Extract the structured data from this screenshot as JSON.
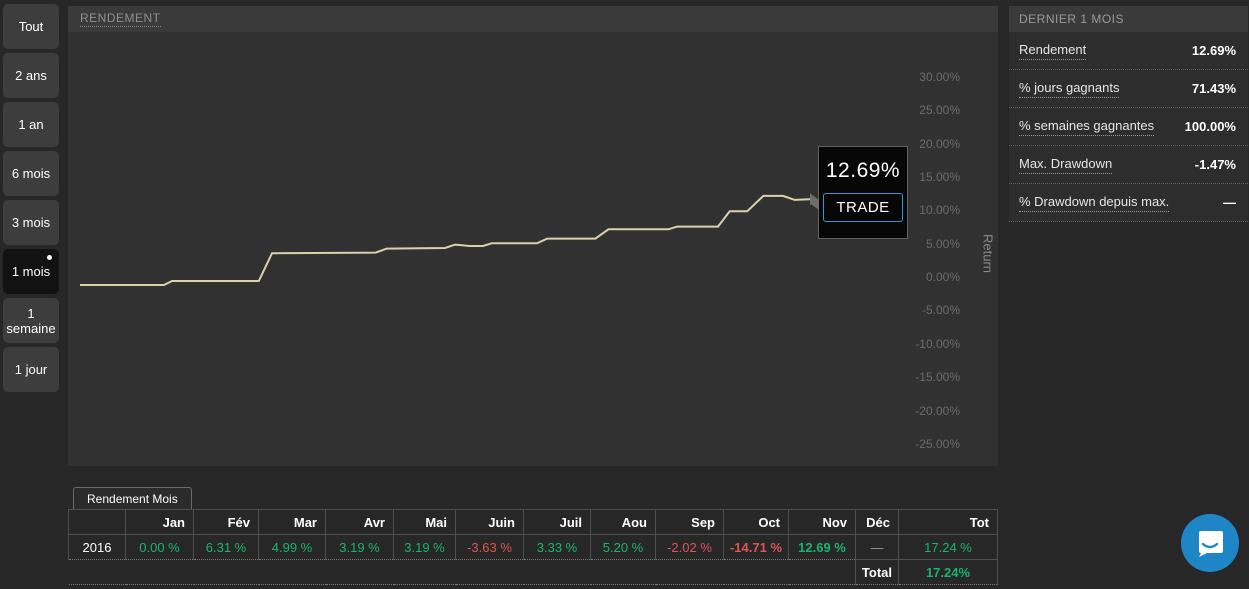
{
  "sidebar": {
    "items": [
      {
        "label": "Tout",
        "selected": false
      },
      {
        "label": "2 ans",
        "selected": false
      },
      {
        "label": "1 an",
        "selected": false
      },
      {
        "label": "6 mois",
        "selected": false
      },
      {
        "label": "3 mois",
        "selected": false
      },
      {
        "label": "1 mois",
        "selected": true
      },
      {
        "label": "1 semaine",
        "selected": false
      },
      {
        "label": "1 jour",
        "selected": false
      }
    ]
  },
  "chart": {
    "title": "RENDEMENT",
    "tooltip": {
      "value": "12.69%",
      "button_label": "TRADE"
    }
  },
  "chart_data": {
    "type": "line",
    "title": "RENDEMENT",
    "ylabel": "Return",
    "ylim": [
      -27.5,
      32.5
    ],
    "grid": false,
    "legend": false,
    "ytick_values": [
      30,
      25,
      20,
      15,
      10,
      5,
      0,
      -5,
      -10,
      -15,
      -20,
      -25
    ],
    "ytick_labels": [
      "30.00%",
      "25.00%",
      "20.00%",
      "15.00%",
      "10.00%",
      "5.00%",
      "0.00%",
      "-5.00%",
      "-10.00%",
      "-15.00%",
      "-20.00%",
      "-25.00%"
    ],
    "series": [
      {
        "name": "Return",
        "color": "#d8d2ad",
        "final_value_pct": 12.69,
        "points_x_fraction_y_pct": [
          [
            0.0,
            -0.15
          ],
          [
            0.115,
            -0.15
          ],
          [
            0.126,
            0.45
          ],
          [
            0.245,
            0.45
          ],
          [
            0.263,
            4.6
          ],
          [
            0.405,
            4.7
          ],
          [
            0.42,
            5.3
          ],
          [
            0.5,
            5.4
          ],
          [
            0.514,
            5.9
          ],
          [
            0.534,
            5.7
          ],
          [
            0.552,
            5.7
          ],
          [
            0.564,
            6.1
          ],
          [
            0.626,
            6.1
          ],
          [
            0.64,
            6.8
          ],
          [
            0.706,
            6.8
          ],
          [
            0.724,
            8.2
          ],
          [
            0.806,
            8.2
          ],
          [
            0.818,
            8.6
          ],
          [
            0.874,
            8.6
          ],
          [
            0.89,
            10.9
          ],
          [
            0.914,
            10.9
          ],
          [
            0.936,
            13.2
          ],
          [
            0.963,
            13.2
          ],
          [
            0.979,
            12.6
          ],
          [
            1.0,
            12.69
          ]
        ]
      }
    ]
  },
  "stats_panel": {
    "title": "DERNIER 1 MOIS",
    "rows": [
      {
        "label": "Rendement",
        "value": "12.69%"
      },
      {
        "label": "% jours gagnants",
        "value": "71.43%"
      },
      {
        "label": "% semaines gagnantes",
        "value": "100.00%"
      },
      {
        "label": "Max. Drawdown",
        "value": "-1.47%"
      },
      {
        "label": "% Drawdown depuis max.",
        "value": "—"
      }
    ]
  },
  "month_table": {
    "tab_label": "Rendement Mois",
    "columns": [
      "",
      "Jan",
      "Fév",
      "Mar",
      "Avr",
      "Mai",
      "Juin",
      "Juil",
      "Aou",
      "Sep",
      "Oct",
      "Nov",
      "Déc",
      "Tot"
    ],
    "rows": [
      {
        "year": "2016",
        "cells": [
          {
            "text": "0.00 %",
            "tone": "pos",
            "bold": false
          },
          {
            "text": "6.31 %",
            "tone": "pos",
            "bold": false
          },
          {
            "text": "4.99 %",
            "tone": "pos",
            "bold": false
          },
          {
            "text": "3.19 %",
            "tone": "pos",
            "bold": false
          },
          {
            "text": "3.19 %",
            "tone": "pos",
            "bold": false
          },
          {
            "text": "-3.63 %",
            "tone": "neg",
            "bold": false
          },
          {
            "text": "3.33 %",
            "tone": "pos",
            "bold": false
          },
          {
            "text": "5.20 %",
            "tone": "pos",
            "bold": false
          },
          {
            "text": "-2.02 %",
            "tone": "neg",
            "bold": false
          },
          {
            "text": "-14.71 %",
            "tone": "neg",
            "bold": true
          },
          {
            "text": "12.69 %",
            "tone": "pos",
            "bold": true
          },
          {
            "text": "—",
            "tone": "muted",
            "bold": false
          },
          {
            "text": "17.24 %",
            "tone": "pos",
            "bold": false
          }
        ]
      }
    ],
    "footer": {
      "label": "Total",
      "value": "17.24%"
    }
  },
  "colors": {
    "positive_green": "#19b56d",
    "negative_red": "#de5454",
    "line_cream": "#d8d2ad",
    "trade_border_blue": "#2b9bd7",
    "chat_blue": "#1e86c7"
  }
}
